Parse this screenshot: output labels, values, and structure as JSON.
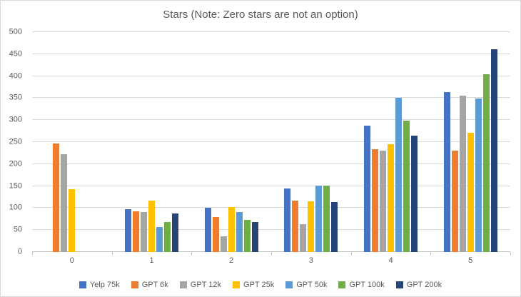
{
  "chart_data": {
    "type": "bar",
    "title": "Stars (Note: Zero stars are not an option)",
    "categories": [
      "0",
      "1",
      "2",
      "3",
      "4",
      "5"
    ],
    "series": [
      {
        "name": "Yelp 75k",
        "color": "#4472C4",
        "values": [
          0,
          98,
          100,
          144,
          287,
          364
        ]
      },
      {
        "name": "GPT 6k",
        "color": "#ED7D31",
        "values": [
          246,
          92,
          80,
          117,
          234,
          230
        ]
      },
      {
        "name": "GPT 12k",
        "color": "#A5A5A5",
        "values": [
          222,
          91,
          36,
          63,
          230,
          356
        ]
      },
      {
        "name": "GPT 25k",
        "color": "#FFC000",
        "values": [
          143,
          117,
          103,
          115,
          245,
          271
        ]
      },
      {
        "name": "GPT 50k",
        "color": "#5B9BD5",
        "values": [
          0,
          57,
          91,
          151,
          350,
          349
        ]
      },
      {
        "name": "GPT 100k",
        "color": "#70AD47",
        "values": [
          0,
          68,
          73,
          151,
          298,
          405
        ]
      },
      {
        "name": "GPT 200k",
        "color": "#264478",
        "values": [
          0,
          87,
          69,
          114,
          265,
          461
        ]
      }
    ],
    "ylim": [
      0,
      500
    ],
    "ytick_step": 50,
    "grid": true,
    "legend_position": "bottom"
  }
}
